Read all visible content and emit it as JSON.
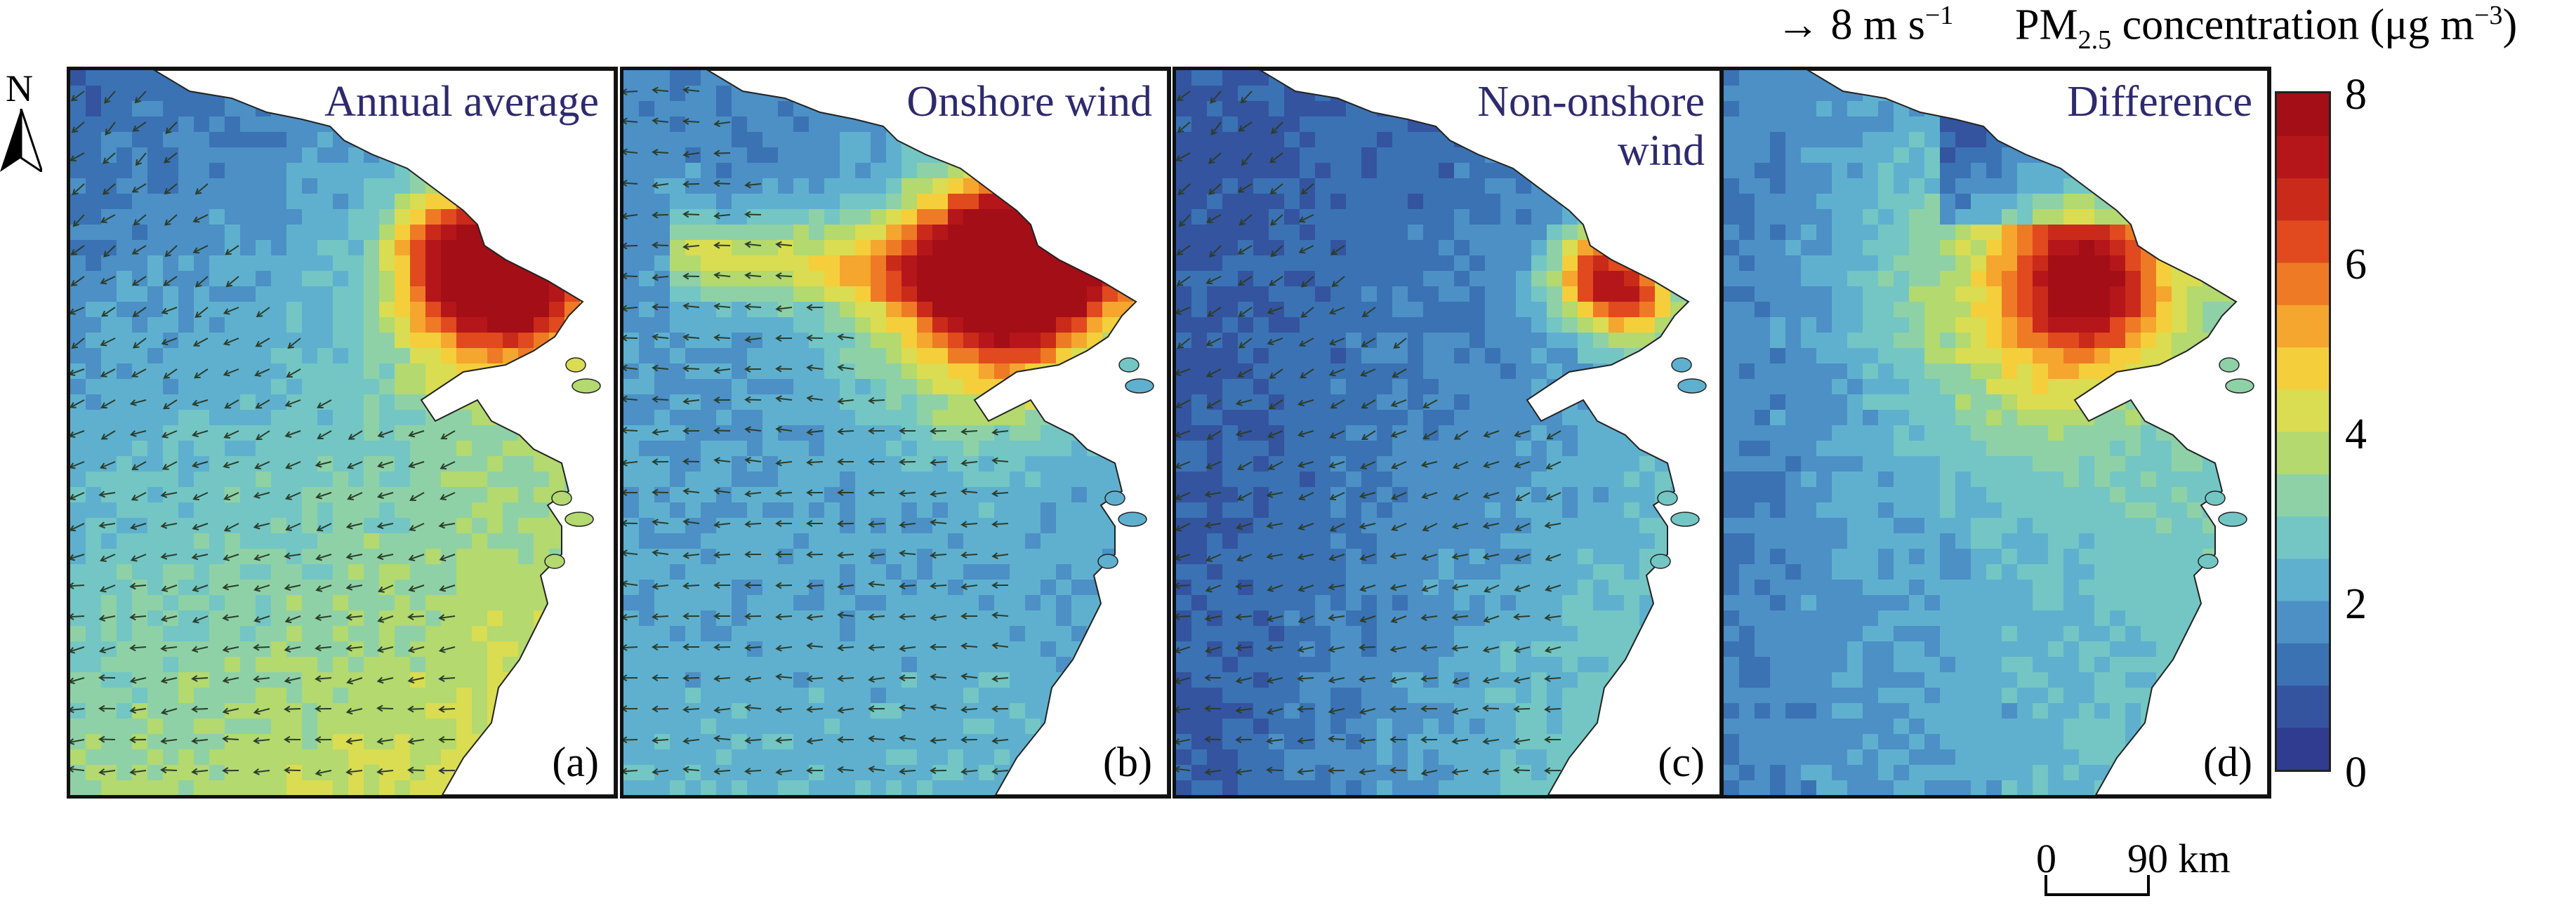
{
  "figure": {
    "legend_title_main": "PM",
    "legend_title_sub": "2.5",
    "legend_title_rest": " concentration (μg m",
    "legend_title_sup": "−3",
    "legend_title_end": ")",
    "wind_reference_value": "8 m s",
    "wind_reference_sup": "−1",
    "north_label": "N",
    "scale_bar": {
      "start": "0",
      "end": "90 km"
    }
  },
  "colorbar": {
    "min": 0,
    "max": 8,
    "tick_labels": [
      "8",
      "6",
      "4",
      "2",
      "0"
    ],
    "colors": [
      "#2f3c8f",
      "#34549f",
      "#3b72b3",
      "#4c90c6",
      "#5fb0cf",
      "#73c6c4",
      "#8fd1a6",
      "#b3d96f",
      "#dadc52",
      "#f4cf3b",
      "#f5a62e",
      "#ef7a25",
      "#e04a1e",
      "#c92a1a",
      "#b5161a",
      "#a30e17"
    ]
  },
  "panels": [
    {
      "title": "Annual average",
      "label": "(a)",
      "wind_vectors": true
    },
    {
      "title": "Onshore wind",
      "label": "(b)",
      "wind_vectors": true
    },
    {
      "title": "Non-onshore\nwind",
      "label": "(c)",
      "wind_vectors": true
    },
    {
      "title": "Difference",
      "label": "(d)",
      "wind_vectors": false
    }
  ]
}
